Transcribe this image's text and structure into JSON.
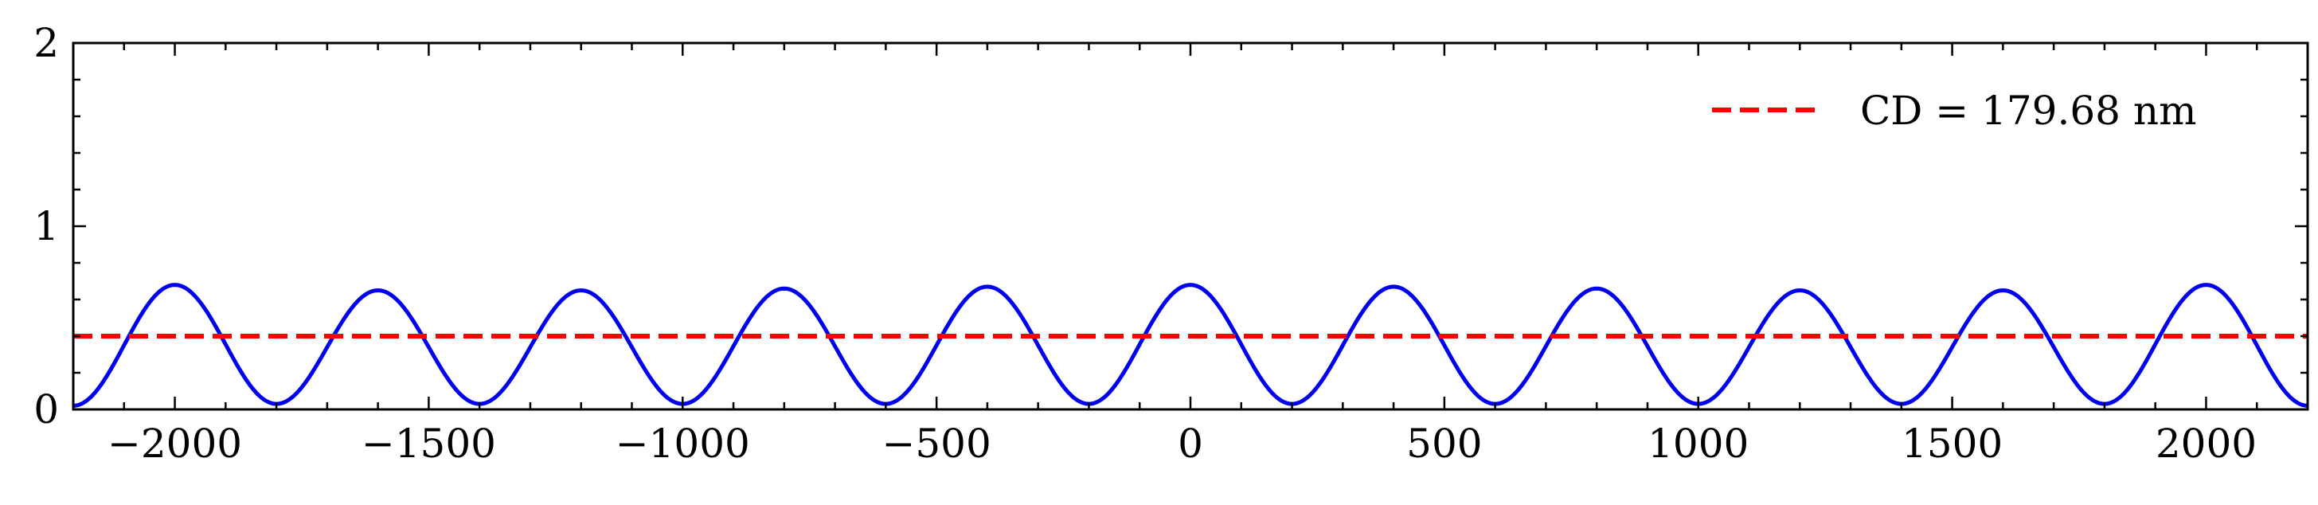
{
  "chart_data": {
    "type": "line",
    "title": "",
    "xlabel": "",
    "ylabel": "",
    "xlim": [
      -2200,
      2200
    ],
    "ylim": [
      0,
      2
    ],
    "x_ticks": [
      -2000,
      -1500,
      -1000,
      -500,
      0,
      500,
      1000,
      1500,
      2000
    ],
    "x_tick_labels": [
      "−2000",
      "−1500",
      "−1000",
      "−500",
      "0",
      "500",
      "1000",
      "1500",
      "2000"
    ],
    "y_ticks": [
      0,
      1,
      2
    ],
    "y_tick_labels": [
      "0",
      "1",
      "2"
    ],
    "x_minor_step": 100,
    "y_minor_step": 0.2,
    "grid": false,
    "legend": {
      "position": "top-right",
      "entries": [
        "CD = 179.68 nm"
      ]
    },
    "series": [
      {
        "style": "solid",
        "color": "#0000ee",
        "period": 400,
        "x": [
          -2200,
          -2000,
          -1800,
          -1600,
          -1400,
          -1200,
          -1000,
          -800,
          -600,
          -400,
          -200,
          0,
          200,
          400,
          600,
          800,
          1000,
          1200,
          1400,
          1600,
          1800,
          2000,
          2200
        ],
        "y": [
          0.02,
          0.68,
          0.03,
          0.65,
          0.03,
          0.65,
          0.03,
          0.66,
          0.03,
          0.67,
          0.03,
          0.68,
          0.03,
          0.67,
          0.03,
          0.66,
          0.03,
          0.65,
          0.03,
          0.65,
          0.03,
          0.68,
          0.02
        ]
      },
      {
        "name": "CD = 179.68 nm",
        "style": "dashed",
        "color": "#ff0000",
        "x": [
          -2200,
          2200
        ],
        "y": [
          0.4,
          0.4
        ]
      }
    ]
  }
}
